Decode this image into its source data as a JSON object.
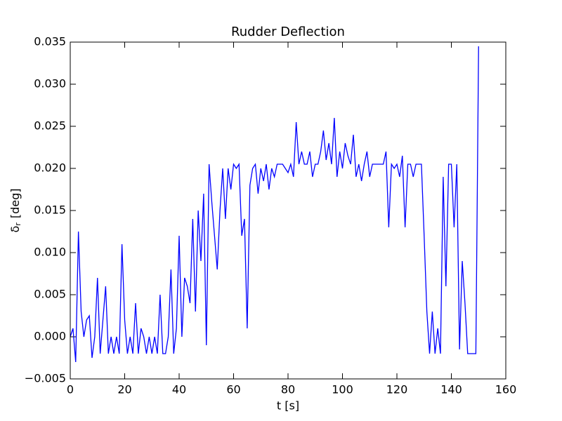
{
  "chart_data": {
    "type": "line",
    "title": "Rudder Deflection",
    "xlabel": "t [s]",
    "ylabel_symbol": "δ",
    "ylabel_subscript": "r",
    "ylabel_unit": "[deg]",
    "color": "#0000ff",
    "xlim": [
      0,
      160
    ],
    "xticks": [
      0,
      20,
      40,
      60,
      80,
      100,
      120,
      140,
      160
    ],
    "ylim": [
      -0.005,
      0.035
    ],
    "yticks": [
      {
        "value": -0.005,
        "label": "−0.005"
      },
      {
        "value": 0,
        "label": "0.000"
      },
      0.005,
      {
        "value": 0.01,
        "label": "0.010"
      },
      0.015,
      {
        "value": 0.02,
        "label": "0.020"
      },
      0.025,
      {
        "value": 0.03,
        "label": "0.030"
      },
      0.035
    ],
    "x": [
      0,
      1,
      2,
      3,
      4,
      5,
      6,
      7,
      8,
      9,
      10,
      11,
      12,
      13,
      14,
      15,
      16,
      17,
      18,
      19,
      20,
      21,
      22,
      23,
      24,
      25,
      26,
      27,
      28,
      29,
      30,
      31,
      32,
      33,
      34,
      35,
      36,
      37,
      38,
      39,
      40,
      41,
      42,
      43,
      44,
      45,
      46,
      47,
      48,
      49,
      50,
      51,
      52,
      53,
      54,
      55,
      56,
      57,
      58,
      59,
      60,
      61,
      62,
      63,
      64,
      65,
      66,
      67,
      68,
      69,
      70,
      71,
      72,
      73,
      74,
      75,
      76,
      77,
      78,
      79,
      80,
      81,
      82,
      83,
      84,
      85,
      86,
      87,
      88,
      89,
      90,
      91,
      92,
      93,
      94,
      95,
      96,
      97,
      98,
      99,
      100,
      101,
      102,
      103,
      104,
      105,
      106,
      107,
      108,
      109,
      110,
      111,
      112,
      113,
      114,
      115,
      116,
      117,
      118,
      119,
      120,
      121,
      122,
      123,
      124,
      125,
      126,
      127,
      128,
      129,
      130,
      131,
      132,
      133,
      134,
      135,
      136,
      137,
      138,
      139,
      140,
      141,
      142,
      143,
      144,
      145,
      146,
      147,
      148,
      149,
      150
    ],
    "values": [
      0.0,
      0.001,
      -0.003,
      0.0125,
      0.003,
      0.0,
      0.002,
      0.0025,
      -0.0025,
      0.0,
      0.007,
      -0.002,
      0.002,
      0.006,
      -0.002,
      0.0,
      -0.002,
      0.0,
      -0.002,
      0.011,
      0.002,
      -0.002,
      0.0,
      -0.002,
      0.004,
      -0.002,
      0.001,
      0.0,
      -0.002,
      0.0,
      -0.002,
      0.0,
      -0.002,
      0.005,
      -0.002,
      -0.002,
      0.0,
      0.008,
      -0.002,
      0.001,
      0.012,
      0.0,
      0.007,
      0.006,
      0.004,
      0.014,
      0.003,
      0.015,
      0.009,
      0.017,
      -0.001,
      0.0205,
      0.016,
      0.012,
      0.008,
      0.015,
      0.02,
      0.014,
      0.02,
      0.0175,
      0.0205,
      0.02,
      0.0205,
      0.012,
      0.014,
      0.001,
      0.018,
      0.02,
      0.0205,
      0.017,
      0.02,
      0.0185,
      0.0205,
      0.0175,
      0.02,
      0.019,
      0.0205,
      0.0205,
      0.0205,
      0.02,
      0.0195,
      0.0205,
      0.019,
      0.0255,
      0.0205,
      0.022,
      0.0205,
      0.0205,
      0.022,
      0.019,
      0.0205,
      0.0205,
      0.022,
      0.0245,
      0.021,
      0.023,
      0.0205,
      0.026,
      0.019,
      0.022,
      0.02,
      0.023,
      0.0215,
      0.0205,
      0.024,
      0.019,
      0.0205,
      0.0185,
      0.0205,
      0.022,
      0.019,
      0.0205,
      0.0205,
      0.0205,
      0.0205,
      0.0205,
      0.022,
      0.013,
      0.0205,
      0.02,
      0.0205,
      0.019,
      0.0215,
      0.013,
      0.0205,
      0.0205,
      0.019,
      0.0205,
      0.0205,
      0.0205,
      0.012,
      0.003,
      -0.002,
      0.003,
      -0.002,
      0.001,
      -0.002,
      0.019,
      0.006,
      0.0205,
      0.0205,
      0.013,
      0.0205,
      -0.0015,
      0.009,
      0.004,
      -0.002,
      -0.002,
      -0.002,
      -0.002,
      0.0345
    ]
  }
}
